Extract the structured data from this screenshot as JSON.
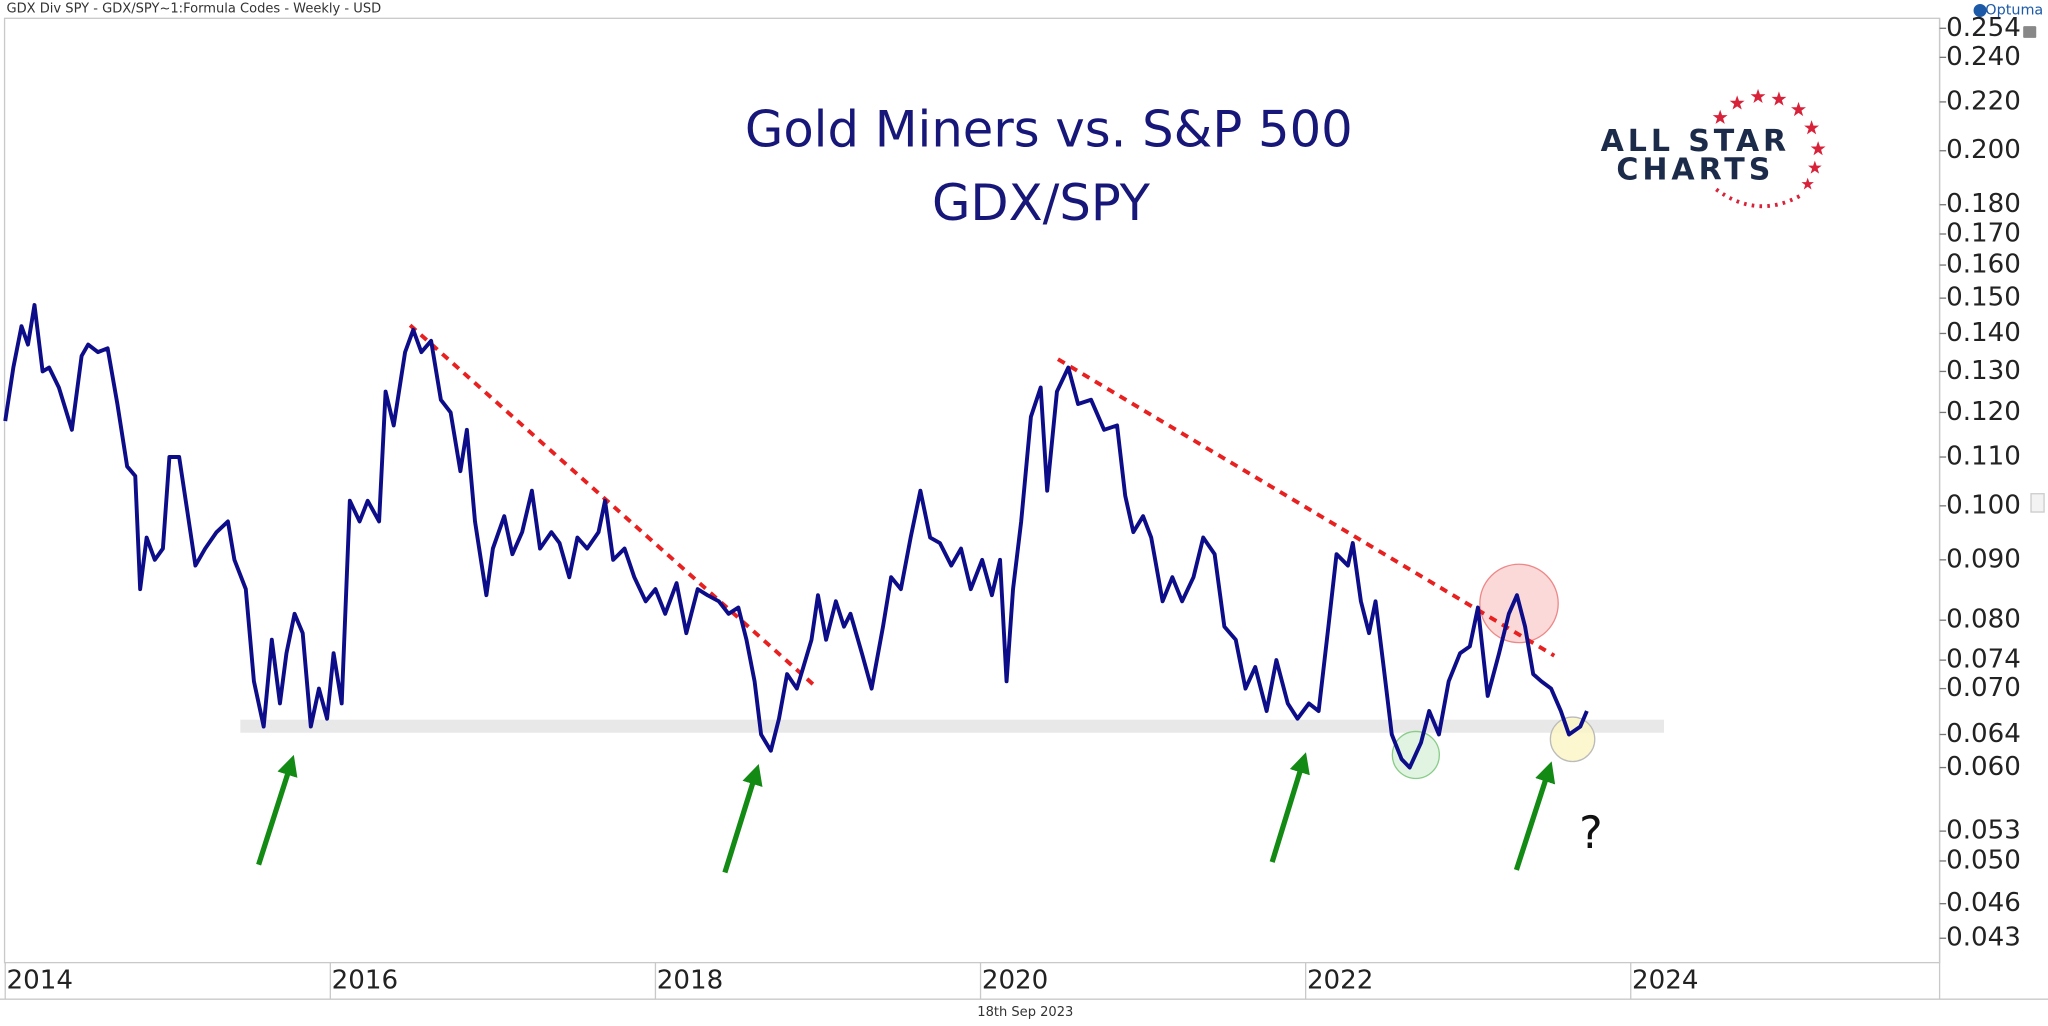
{
  "chart_data": {
    "type": "line",
    "header": "GDX Div SPY - GDX/SPY~1:Formula Codes - Weekly - USD",
    "title": "Gold Miners vs. S&P 500",
    "subtitle": "GDX/SPY",
    "footer_date": "18th Sep 2023",
    "brand": "Optuma",
    "logo": [
      "ALL STAR",
      "CHARTS"
    ],
    "annotation": "?",
    "log_y": true,
    "xlim": [
      2014,
      2025.9
    ],
    "xticks": [
      2014,
      2016,
      2018,
      2020,
      2022,
      2024
    ],
    "ylim": [
      0.041,
      0.259
    ],
    "yticks": [
      0.043,
      0.046,
      {
        "value": 0.05,
        "label": "0.050"
      },
      0.053,
      {
        "value": 0.06,
        "label": "0.060"
      },
      0.064,
      {
        "value": 0.07,
        "label": "0.070"
      },
      0.074,
      {
        "value": 0.08,
        "label": "0.080"
      },
      {
        "value": 0.09,
        "label": "0.090"
      },
      {
        "value": 0.1,
        "label": "0.100"
      },
      {
        "value": 0.11,
        "label": "0.110"
      },
      {
        "value": 0.12,
        "label": "0.120"
      },
      {
        "value": 0.13,
        "label": "0.130"
      },
      {
        "value": 0.14,
        "label": "0.140"
      },
      {
        "value": 0.15,
        "label": "0.150"
      },
      {
        "value": 0.16,
        "label": "0.160"
      },
      {
        "value": 0.17,
        "label": "0.170"
      },
      {
        "value": 0.18,
        "label": "0.180"
      },
      {
        "value": 0.2,
        "label": "0.200"
      },
      {
        "value": 0.22,
        "label": "0.220"
      },
      {
        "value": 0.24,
        "label": "0.240"
      },
      0.254
    ],
    "x": [
      2014.0,
      2014.05,
      2014.1,
      2014.14,
      2014.18,
      2014.23,
      2014.27,
      2014.33,
      2014.41,
      2014.47,
      2014.51,
      2014.57,
      2014.63,
      2014.69,
      2014.75,
      2014.8,
      2014.83,
      2014.87,
      2014.92,
      2014.97,
      2015.01,
      2015.07,
      2015.12,
      2015.17,
      2015.23,
      2015.3,
      2015.37,
      2015.41,
      2015.48,
      2015.53,
      2015.59,
      2015.64,
      2015.69,
      2015.73,
      2015.78,
      2015.83,
      2015.88,
      2015.93,
      2015.98,
      2016.02,
      2016.07,
      2016.12,
      2016.18,
      2016.23,
      2016.3,
      2016.34,
      2016.39,
      2016.46,
      2016.51,
      2016.56,
      2016.62,
      2016.68,
      2016.74,
      2016.8,
      2016.84,
      2016.89,
      2016.96,
      2017.0,
      2017.07,
      2017.12,
      2017.18,
      2017.24,
      2017.29,
      2017.36,
      2017.41,
      2017.47,
      2017.52,
      2017.58,
      2017.65,
      2017.69,
      2017.74,
      2017.81,
      2017.87,
      2017.94,
      2018.0,
      2018.06,
      2018.13,
      2018.19,
      2018.26,
      2018.32,
      2018.39,
      2018.45,
      2018.51,
      2018.56,
      2018.61,
      2018.65,
      2018.71,
      2018.76,
      2018.81,
      2018.87,
      2018.91,
      2018.96,
      2019.0,
      2019.05,
      2019.11,
      2019.16,
      2019.2,
      2019.27,
      2019.33,
      2019.4,
      2019.45,
      2019.51,
      2019.57,
      2019.63,
      2019.69,
      2019.75,
      2019.82,
      2019.88,
      2019.94,
      2020.01,
      2020.07,
      2020.12,
      2020.16,
      2020.2,
      2020.25,
      2020.31,
      2020.37,
      2020.41,
      2020.47,
      2020.54,
      2020.6,
      2020.68,
      2020.76,
      2020.84,
      2020.89,
      2020.94,
      2021.0,
      2021.05,
      2021.12,
      2021.18,
      2021.24,
      2021.31,
      2021.37,
      2021.44,
      2021.5,
      2021.57,
      2021.63,
      2021.69,
      2021.76,
      2021.82,
      2021.89,
      2021.95,
      2022.02,
      2022.08,
      2022.14,
      2022.19,
      2022.26,
      2022.29,
      2022.34,
      2022.39,
      2022.43,
      2022.48,
      2022.53,
      2022.59,
      2022.64,
      2022.71,
      2022.76,
      2022.82,
      2022.88,
      2022.95,
      2023.01,
      2023.06,
      2023.12,
      2023.19,
      2023.25,
      2023.3,
      2023.35,
      2023.4,
      2023.45,
      2023.51,
      2023.57,
      2023.62,
      2023.69,
      2023.73
    ],
    "series": [
      {
        "color": "#0d0d8a",
        "values": [
          0.118,
          0.131,
          0.142,
          0.137,
          0.148,
          0.13,
          0.131,
          0.126,
          0.116,
          0.134,
          0.137,
          0.135,
          0.136,
          0.122,
          0.108,
          0.106,
          0.085,
          0.094,
          0.09,
          0.092,
          0.11,
          0.11,
          0.099,
          0.089,
          0.092,
          0.095,
          0.097,
          0.09,
          0.085,
          0.071,
          0.065,
          0.077,
          0.068,
          0.075,
          0.081,
          0.078,
          0.065,
          0.07,
          0.066,
          0.075,
          0.068,
          0.101,
          0.097,
          0.101,
          0.097,
          0.125,
          0.117,
          0.135,
          0.141,
          0.135,
          0.138,
          0.123,
          0.12,
          0.107,
          0.116,
          0.097,
          0.084,
          0.092,
          0.098,
          0.091,
          0.095,
          0.103,
          0.092,
          0.095,
          0.093,
          0.087,
          0.094,
          0.092,
          0.095,
          0.101,
          0.09,
          0.092,
          0.087,
          0.083,
          0.085,
          0.081,
          0.086,
          0.078,
          0.085,
          0.084,
          0.083,
          0.081,
          0.082,
          0.077,
          0.071,
          0.064,
          0.062,
          0.066,
          0.072,
          0.07,
          0.073,
          0.077,
          0.084,
          0.077,
          0.083,
          0.079,
          0.081,
          0.075,
          0.07,
          0.079,
          0.087,
          0.085,
          0.094,
          0.103,
          0.094,
          0.093,
          0.089,
          0.092,
          0.085,
          0.09,
          0.084,
          0.09,
          0.071,
          0.085,
          0.097,
          0.119,
          0.126,
          0.103,
          0.125,
          0.131,
          0.122,
          0.123,
          0.116,
          0.117,
          0.102,
          0.095,
          0.098,
          0.094,
          0.083,
          0.087,
          0.083,
          0.087,
          0.094,
          0.091,
          0.079,
          0.077,
          0.07,
          0.073,
          0.067,
          0.074,
          0.068,
          0.066,
          0.068,
          0.067,
          0.079,
          0.091,
          0.089,
          0.093,
          0.083,
          0.078,
          0.083,
          0.073,
          0.064,
          0.061,
          0.06,
          0.063,
          0.067,
          0.064,
          0.071,
          0.075,
          0.076,
          0.082,
          0.069,
          0.075,
          0.081,
          0.084,
          0.079,
          0.072,
          0.071,
          0.07,
          0.067,
          0.064,
          0.065,
          0.067
        ]
      }
    ]
  }
}
